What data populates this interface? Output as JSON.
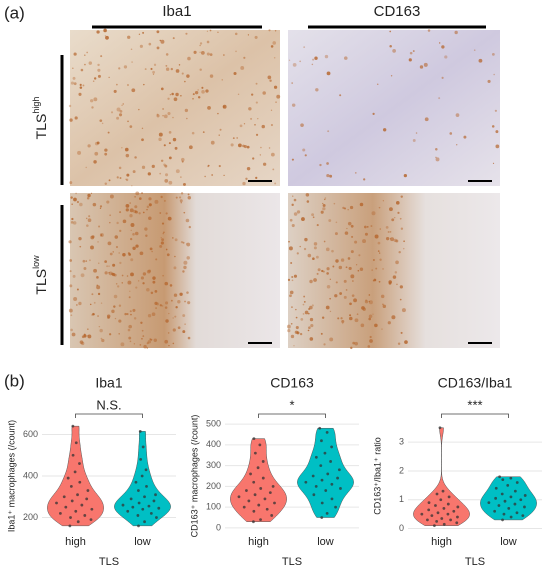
{
  "panel_a": {
    "label": "(a)",
    "columns": [
      "Iba1",
      "CD163"
    ],
    "rows": [
      {
        "base": "TLS",
        "sup": "high"
      },
      {
        "base": "TLS",
        "sup": "low"
      }
    ]
  },
  "panel_b": {
    "label": "(b)"
  },
  "chart_data": [
    {
      "type": "violin",
      "title": "Iba1",
      "ylabel": "Iba1⁺ macrophages (/count)",
      "xlabel": "TLS",
      "annotation": "N.S.",
      "ylim": [
        140,
        660
      ],
      "yticks": [
        200,
        400,
        600
      ],
      "grid": true,
      "series": [
        {
          "name": "high",
          "color": "#f8766d",
          "values": [
            640,
            560,
            500,
            460,
            420,
            390,
            370,
            350,
            330,
            310,
            300,
            290,
            280,
            270,
            260,
            250,
            240,
            230,
            220,
            210,
            200,
            190,
            180,
            160
          ]
        },
        {
          "name": "low",
          "color": "#00bfc4",
          "values": [
            615,
            540,
            480,
            430,
            400,
            370,
            350,
            330,
            310,
            300,
            290,
            280,
            270,
            260,
            255,
            250,
            245,
            240,
            230,
            220,
            210,
            200,
            180,
            160
          ]
        }
      ]
    },
    {
      "type": "violin",
      "title": "CD163",
      "ylabel": "CD163⁺ macrophages (/count)",
      "xlabel": "TLS",
      "annotation": "*",
      "ylim": [
        -10,
        510
      ],
      "yticks": [
        0,
        100,
        200,
        300,
        400,
        500
      ],
      "grid": true,
      "series": [
        {
          "name": "high",
          "color": "#f8766d",
          "values": [
            430,
            400,
            360,
            320,
            290,
            260,
            240,
            220,
            200,
            190,
            180,
            170,
            160,
            150,
            140,
            130,
            120,
            110,
            100,
            90,
            80,
            60,
            40,
            30
          ]
        },
        {
          "name": "low",
          "color": "#00bfc4",
          "values": [
            480,
            460,
            420,
            390,
            360,
            340,
            320,
            300,
            280,
            260,
            250,
            240,
            230,
            220,
            210,
            200,
            190,
            180,
            160,
            140,
            120,
            100,
            70,
            50
          ]
        }
      ]
    },
    {
      "type": "violin",
      "title": "CD163/Iba1",
      "ylabel": "CD163⁺/Iba1⁺ ratio",
      "xlabel": "TLS",
      "annotation": "***",
      "ylim": [
        -0.05,
        3.7
      ],
      "yticks": [
        0,
        1,
        2,
        3
      ],
      "grid": true,
      "series": [
        {
          "name": "high",
          "color": "#f8766d",
          "values": [
            3.5,
            1.3,
            1.2,
            1.1,
            1.0,
            0.9,
            0.85,
            0.8,
            0.75,
            0.7,
            0.65,
            0.6,
            0.55,
            0.5,
            0.5,
            0.45,
            0.4,
            0.35,
            0.3,
            0.3,
            0.25,
            0.2,
            0.15,
            0.1
          ]
        },
        {
          "name": "low",
          "color": "#00bfc4",
          "values": [
            1.8,
            1.75,
            1.7,
            1.6,
            1.5,
            1.4,
            1.3,
            1.2,
            1.15,
            1.1,
            1.05,
            1.0,
            0.95,
            0.9,
            0.85,
            0.8,
            0.75,
            0.7,
            0.6,
            0.55,
            0.5,
            0.45,
            0.4,
            0.3
          ]
        }
      ]
    }
  ]
}
